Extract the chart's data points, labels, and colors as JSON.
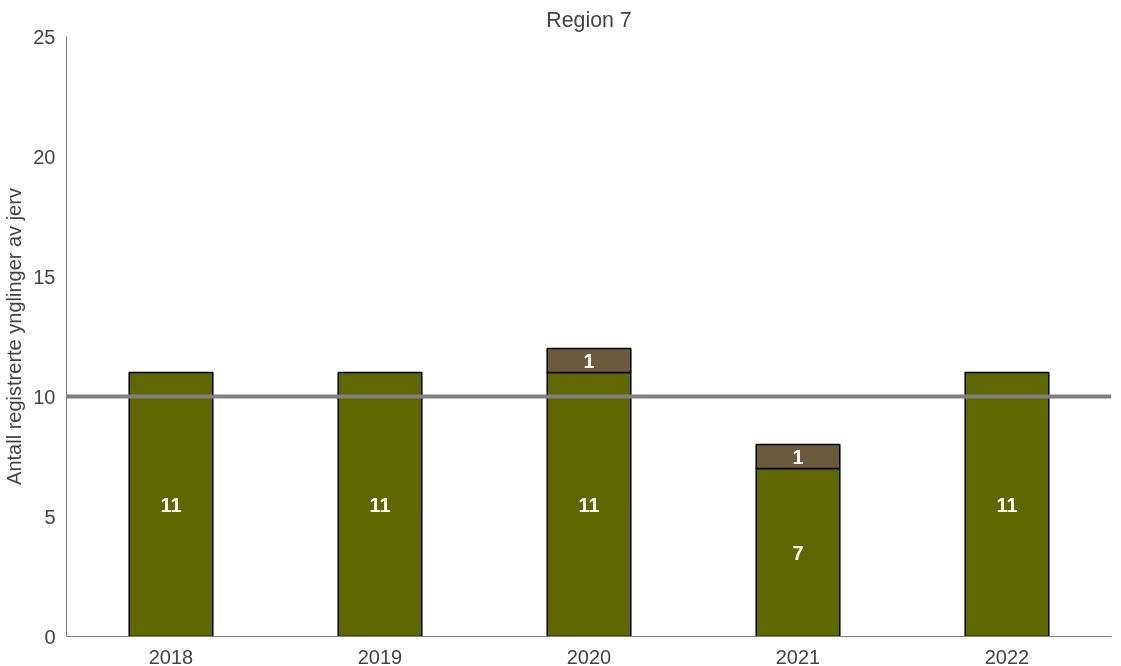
{
  "chart_data": {
    "type": "bar",
    "title": "Region 7",
    "ylabel": "Antall registrerte ynglinger av jerv",
    "categories": [
      "2018",
      "2019",
      "2020",
      "2021",
      "2022"
    ],
    "series": [
      {
        "color": "#606600",
        "values": [
          11,
          11,
          11,
          7,
          11
        ]
      },
      {
        "color": "#6b5a3c",
        "values": [
          null,
          null,
          1,
          1,
          null
        ]
      }
    ],
    "stacked": true,
    "data_labels": true,
    "ylim": [
      0,
      25
    ],
    "yticks": [
      0,
      5,
      10,
      15,
      20,
      25
    ],
    "grid": false,
    "ref_lines": [
      {
        "axis": "y",
        "value": 10,
        "color": "#808080"
      }
    ]
  }
}
